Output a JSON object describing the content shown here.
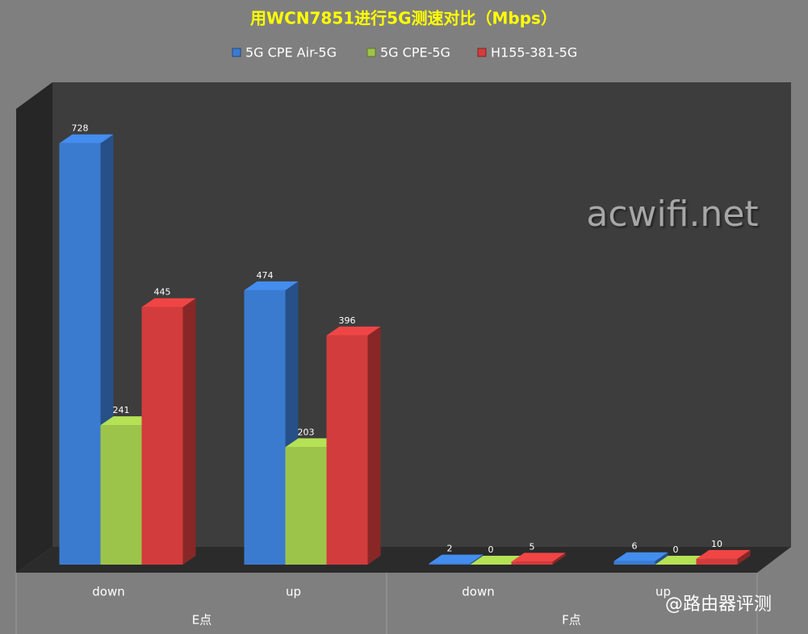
{
  "chart_data": {
    "type": "bar3d",
    "title": "用WCN7851进行5G测速对比（Mbps）",
    "categories": [
      "down",
      "up",
      "down",
      "up"
    ],
    "groups": [
      "E点",
      "F点"
    ],
    "series": [
      {
        "name": "5G CPE Air-5G",
        "color": "#3a7bd0",
        "values": [
          728,
          474,
          2,
          6
        ]
      },
      {
        "name": "5G CPE-5G",
        "color": "#9dc44a",
        "values": [
          241,
          203,
          0,
          0
        ]
      },
      {
        "name": "H155-381-5G",
        "color": "#d23c3c",
        "values": [
          445,
          396,
          5,
          10
        ]
      }
    ],
    "ylim": [
      0,
      800
    ],
    "watermarks": [
      "acwifi.net",
      "@路由器评测"
    ]
  }
}
